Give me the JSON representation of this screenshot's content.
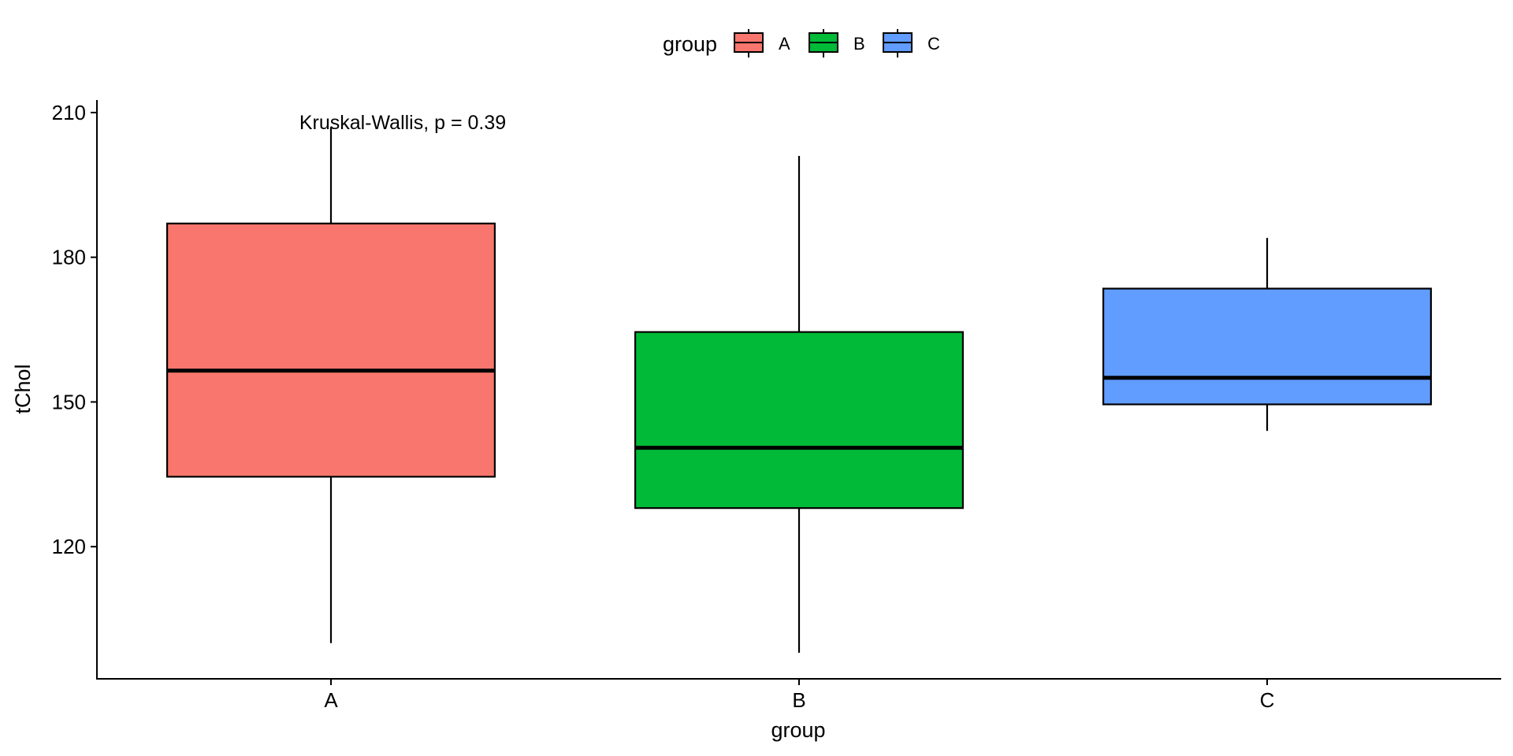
{
  "chart_data": {
    "type": "box",
    "xlabel": "group",
    "ylabel": "tChol",
    "ylim": [
      92.6,
      212.6
    ],
    "yticks": [
      120,
      150,
      180,
      210
    ],
    "categories": [
      "A",
      "B",
      "C"
    ],
    "boxes": [
      {
        "category": "A",
        "whisker_low": 100,
        "q1": 134.5,
        "median": 156.5,
        "q3": 187,
        "whisker_high": 207,
        "color": "#F8766D"
      },
      {
        "category": "B",
        "whisker_low": 98,
        "q1": 128,
        "median": 140.5,
        "q3": 164.5,
        "whisker_high": 201,
        "color": "#00BA38"
      },
      {
        "category": "C",
        "whisker_low": 144,
        "q1": 149.5,
        "median": 155,
        "q3": 173.5,
        "whisker_high": 184,
        "color": "#619CFF"
      }
    ],
    "annotation": {
      "text": "Kruskal-Wallis, p = 0.39",
      "x_category": "A",
      "y": 208
    },
    "legend": {
      "title": "group",
      "position": "top",
      "entries": [
        "A",
        "B",
        "C"
      ]
    },
    "grid": false
  }
}
